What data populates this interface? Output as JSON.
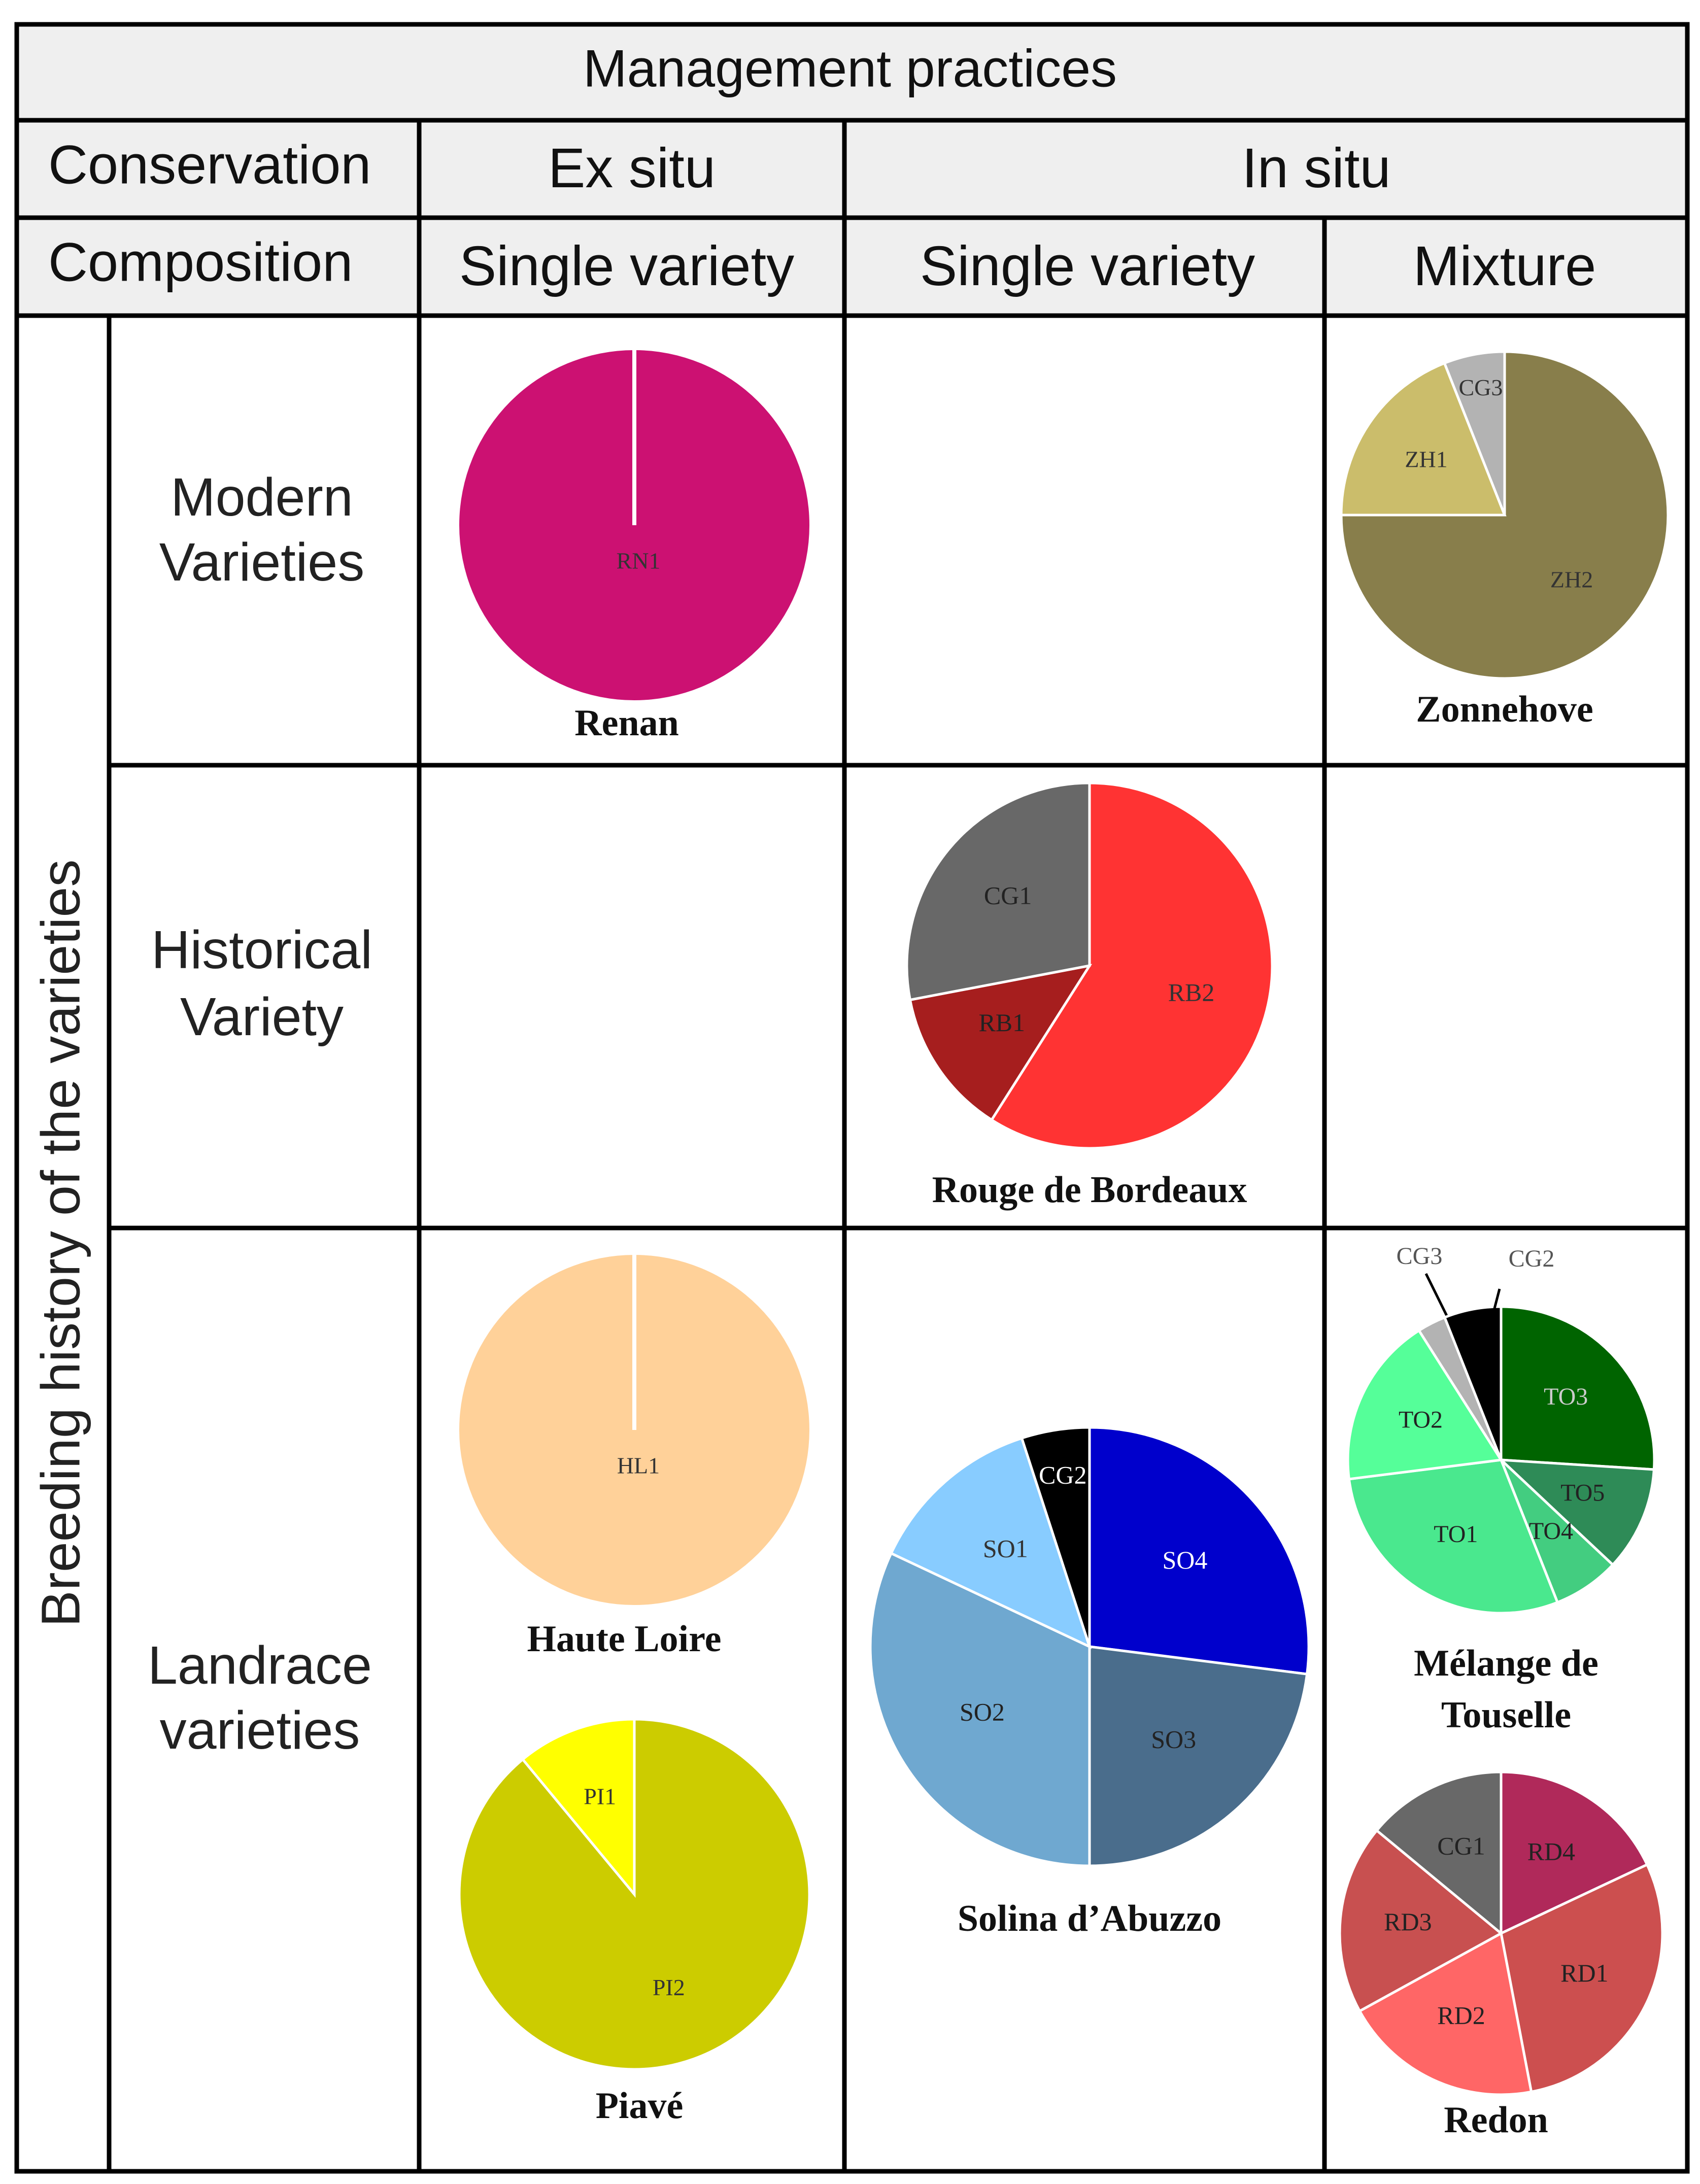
{
  "table": {
    "title": "Management practices",
    "conservation_label": "Conservation",
    "composition_label": "Composition",
    "ex_situ": "Ex situ",
    "in_situ": "In situ",
    "single_variety_ex": "Single variety",
    "single_variety_in": "Single variety",
    "mixture": "Mixture",
    "side_label": "Breeding history of the varieties",
    "rows": {
      "modern": [
        "Modern",
        "Varieties"
      ],
      "historical": [
        "Historical",
        "Variety"
      ],
      "landrace": [
        "Landrace",
        "varieties"
      ]
    },
    "colors": {
      "header_fill": "#efefef",
      "grid": "#000000"
    }
  },
  "chart_data": [
    {
      "type": "pie",
      "id": "renan",
      "title": "Renan",
      "cell": "modern-exsitu",
      "slices": [
        {
          "label": "RN1",
          "value": 100,
          "color": "#cc1172",
          "label_color": "#333333"
        }
      ]
    },
    {
      "type": "pie",
      "id": "zonnehove",
      "title": "Zonnehove",
      "cell": "modern-mixture",
      "slices": [
        {
          "label": "ZH2",
          "value": 75,
          "color": "#887e4b",
          "label_color": "#333333"
        },
        {
          "label": "ZH1",
          "value": 19,
          "color": "#cbbd6b",
          "label_color": "#333333"
        },
        {
          "label": "CG3",
          "value": 6,
          "color": "#b3b3b3",
          "label_color": "#333333"
        }
      ]
    },
    {
      "type": "pie",
      "id": "rouge-de-bordeaux",
      "title": "Rouge de Bordeaux",
      "cell": "historical-insitu",
      "slices": [
        {
          "label": "RB2",
          "value": 59,
          "color": "#ff3333",
          "label_color": "#333333"
        },
        {
          "label": "RB1",
          "value": 13,
          "color": "#a61e1e",
          "label_color": "#222222"
        },
        {
          "label": "CG1",
          "value": 28,
          "color": "#686868",
          "label_color": "#222222"
        }
      ]
    },
    {
      "type": "pie",
      "id": "haute-loire",
      "title": "Haute Loire",
      "cell": "landrace-exsitu-top",
      "slices": [
        {
          "label": "HL1",
          "value": 100,
          "color": "#ffd199",
          "label_color": "#333333"
        }
      ]
    },
    {
      "type": "pie",
      "id": "piave",
      "title": "Piavé",
      "cell": "landrace-exsitu-bottom",
      "slices": [
        {
          "label": "PI2",
          "value": 89,
          "color": "#cccc00",
          "label_color": "#333333"
        },
        {
          "label": "PI1",
          "value": 11,
          "color": "#ffff00",
          "label_color": "#333333"
        }
      ]
    },
    {
      "type": "pie",
      "id": "solina-dabuzzo",
      "title": "Solina d’Abuzzo",
      "cell": "landrace-insitu",
      "slices": [
        {
          "label": "SO4",
          "value": 27,
          "color": "#0000cc",
          "label_color": "#ffffff"
        },
        {
          "label": "SO3",
          "value": 23,
          "color": "#4a6d8c",
          "label_color": "#222222"
        },
        {
          "label": "SO2",
          "value": 32,
          "color": "#6fa8d0",
          "label_color": "#222222"
        },
        {
          "label": "SO1",
          "value": 13,
          "color": "#88ccff",
          "label_color": "#333333"
        },
        {
          "label": "CG2",
          "value": 5,
          "color": "#000000",
          "label_color": "#ffffff"
        }
      ]
    },
    {
      "type": "pie",
      "id": "melange-de-touselle",
      "title": "Mélange de Touselle",
      "title_lines": [
        "Mélange de",
        "Touselle"
      ],
      "cell": "landrace-mixture-top",
      "slices": [
        {
          "label": "TO3",
          "value": 26,
          "color": "#006400",
          "label_color": "#cccccc"
        },
        {
          "label": "TO5",
          "value": 11,
          "color": "#2e8b57",
          "label_color": "#222222"
        },
        {
          "label": "TO4",
          "value": 7,
          "color": "#43cd80",
          "label_color": "#222222"
        },
        {
          "label": "TO1",
          "value": 29,
          "color": "#4ae88e",
          "label_color": "#222222"
        },
        {
          "label": "TO2",
          "value": 18,
          "color": "#55ff99",
          "label_color": "#222222"
        },
        {
          "label": "CG3",
          "value": 3,
          "color": "#b3b3b3",
          "label_color": "#555555"
        },
        {
          "label": "CG2",
          "value": 6,
          "color": "#000000",
          "label_color": "#555555"
        }
      ]
    },
    {
      "type": "pie",
      "id": "redon",
      "title": "Redon",
      "cell": "landrace-mixture-bottom",
      "slices": [
        {
          "label": "RD4",
          "value": 18,
          "color": "#b0295a",
          "label_color": "#222222"
        },
        {
          "label": "RD1",
          "value": 29,
          "color": "#cc4f4f",
          "label_color": "#222222"
        },
        {
          "label": "RD2",
          "value": 20,
          "color": "#ff6666",
          "label_color": "#222222"
        },
        {
          "label": "RD3",
          "value": 19,
          "color": "#c85050",
          "label_color": "#222222"
        },
        {
          "label": "CG1",
          "value": 14,
          "color": "#686868",
          "label_color": "#222222"
        }
      ]
    }
  ]
}
